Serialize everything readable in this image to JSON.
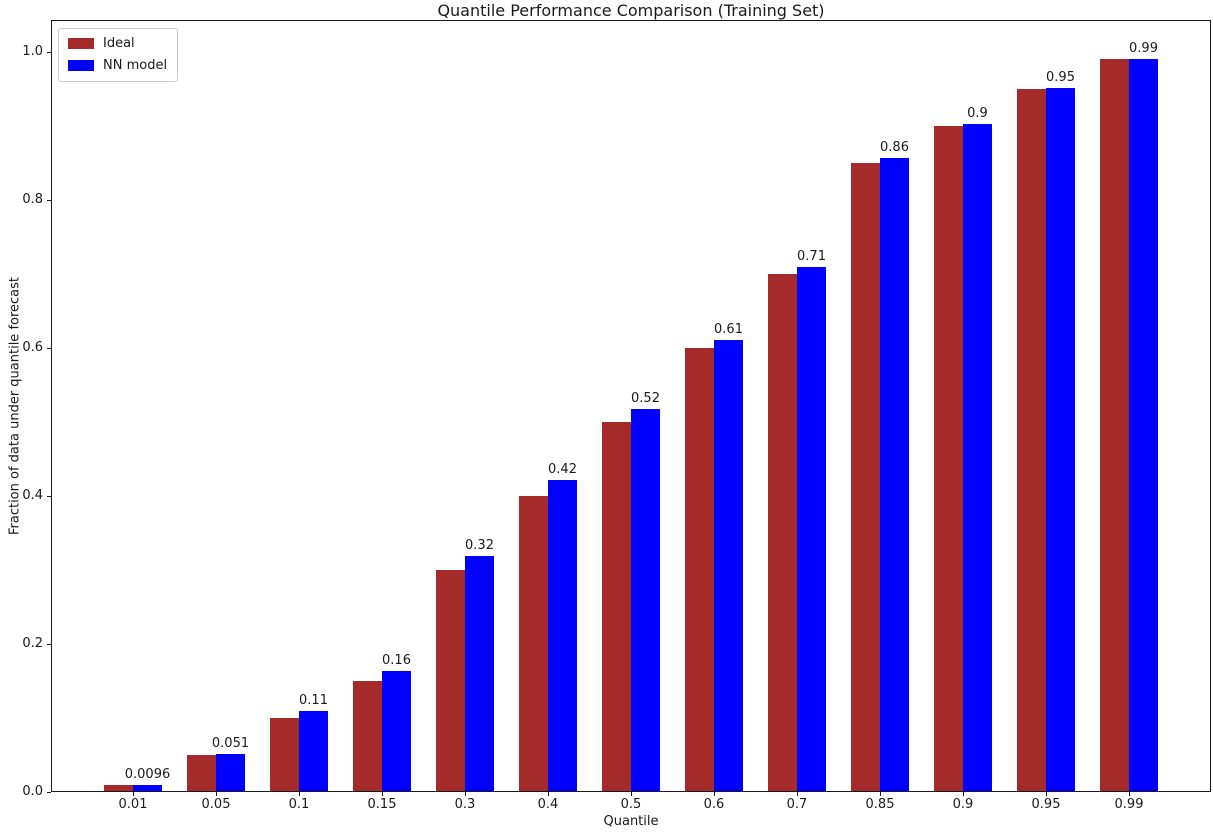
{
  "chart_data": {
    "type": "bar",
    "title": "Quantile Performance Comparison (Training Set)",
    "xlabel": "Quantile",
    "ylabel": "Fraction of data under quantile forecast",
    "categories": [
      "0.01",
      "0.05",
      "0.1",
      "0.15",
      "0.3",
      "0.4",
      "0.5",
      "0.6",
      "0.7",
      "0.85",
      "0.9",
      "0.95",
      "0.99"
    ],
    "series": [
      {
        "name": "Ideal",
        "color": "#A52A2A",
        "values": [
          0.01,
          0.05,
          0.1,
          0.15,
          0.3,
          0.4,
          0.5,
          0.6,
          0.7,
          0.85,
          0.9,
          0.95,
          0.99
        ]
      },
      {
        "name": "NN model",
        "color": "#0000FF",
        "values": [
          0.0096,
          0.051,
          0.11,
          0.163,
          0.319,
          0.422,
          0.517,
          0.611,
          0.71,
          0.857,
          0.903,
          0.951,
          0.99
        ]
      }
    ],
    "bar_labels": [
      "0.0096",
      "0.051",
      "0.11",
      "0.16",
      "0.32",
      "0.42",
      "0.52",
      "0.61",
      "0.71",
      "0.86",
      "0.9",
      "0.95",
      "0.99"
    ],
    "bar_labels_on_series": "NN model",
    "ytick_values": [
      0.0,
      0.2,
      0.4,
      0.6,
      0.8,
      1.0
    ],
    "ytick_labels": [
      "0.0",
      "0.2",
      "0.4",
      "0.6",
      "0.8",
      "1.0"
    ],
    "ylim": [
      0,
      1.0432
    ],
    "legend_position": "upper left",
    "grid": false,
    "background_color": "#ffffff",
    "spine_color": "#1a1a1a"
  }
}
